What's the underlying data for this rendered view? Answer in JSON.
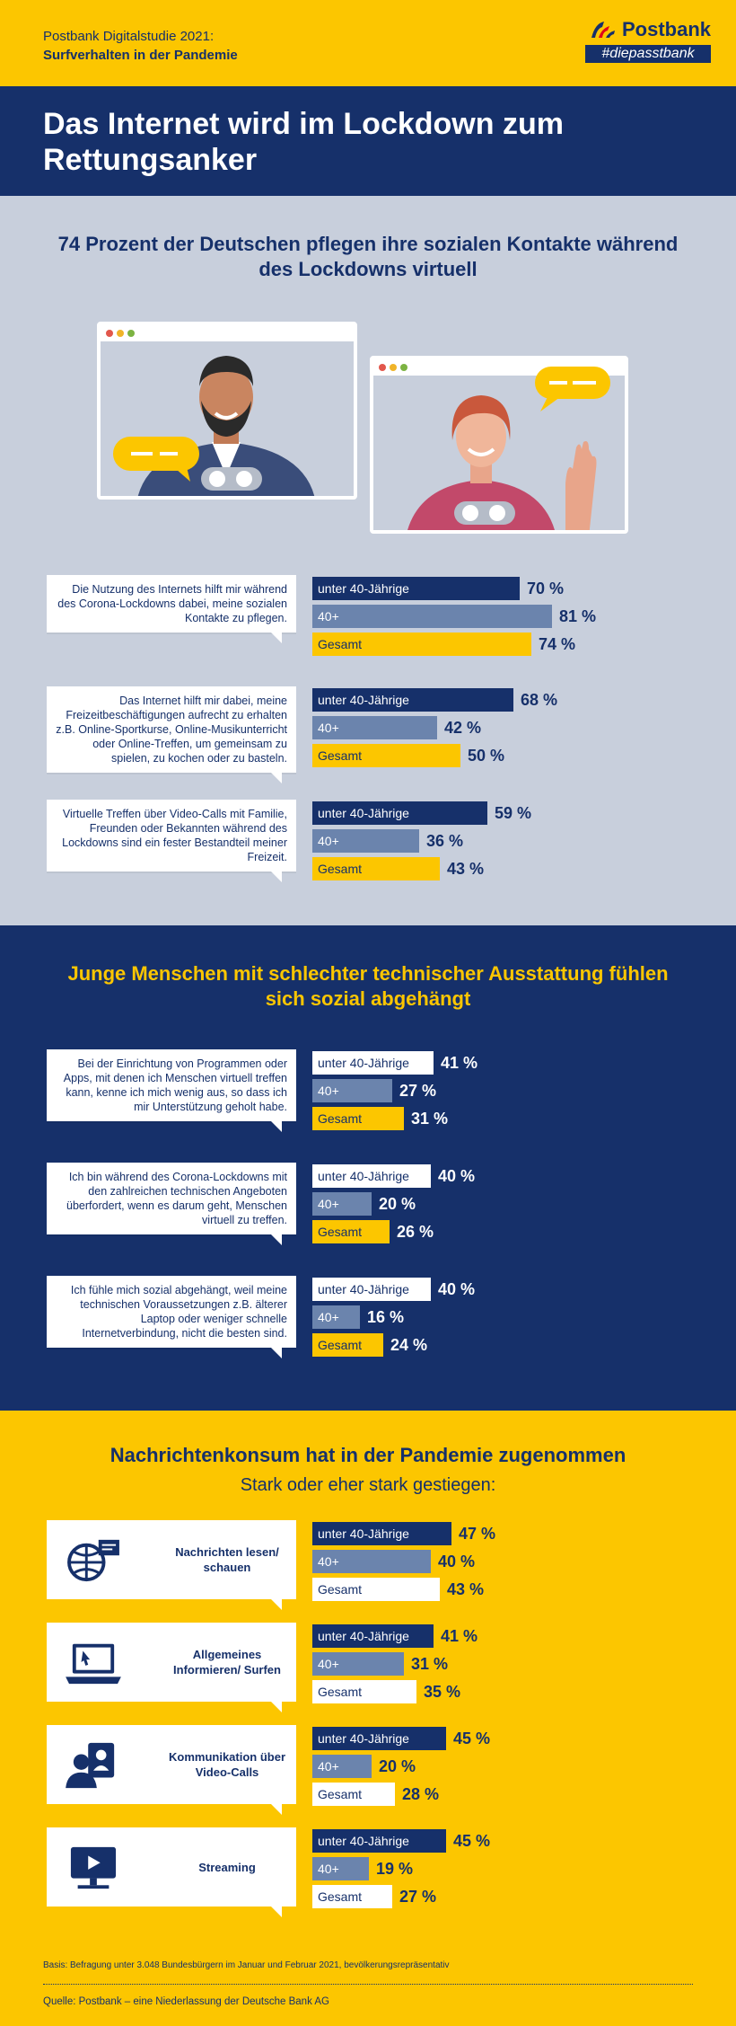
{
  "header": {
    "study": "Postbank Digitalstudie 2021:",
    "subtitle": "Surfverhalten in der Pandemie",
    "logo": "Postbank",
    "tagline": "#diepasstbank"
  },
  "hero": {
    "title": "Das Internet wird im Lockdown zum Rettungsanker"
  },
  "sections": [
    {
      "headline": "74 Prozent der Deutschen pflegen ihre sozialen Kontakte während des Lockdowns virtuell"
    },
    {
      "headline": "Junge Menschen mit schlechter technischer Ausstattung fühlen sich sozial abgehängt"
    },
    {
      "headline": "Nachrichtenkonsum hat in der Pandemie zugenommen",
      "subline": "Stark oder eher stark gestiegen:"
    }
  ],
  "colors": {
    "navy": "#16306a",
    "mid": "#6b84ad",
    "yellow": "#fcc600",
    "white": "#ffffff",
    "lightbg": "#c8cfdc"
  },
  "chart_data": {
    "type": "bar",
    "unit": "%",
    "series_names": [
      "unter 40-Jährige",
      "40+",
      "Gesamt"
    ],
    "groups": [
      {
        "section": 0,
        "statement": "Die Nutzung des Internets hilft mir während des Corona-Lockdowns dabei, meine sozialen Kontakte zu pflegen.",
        "values": [
          70,
          81,
          74
        ]
      },
      {
        "section": 0,
        "statement": "Das Internet hilft mir dabei, meine Freizeitbeschäftigungen aufrecht zu erhalten z.B. Online-Sportkurse, Online-Musikunterricht oder Online-Treffen, um gemeinsam zu spielen, zu kochen oder zu basteln.",
        "values": [
          68,
          42,
          50
        ]
      },
      {
        "section": 0,
        "statement": "Virtuelle Treffen über Video-Calls mit Familie, Freunden oder Bekannten während des Lockdowns sind ein fester Bestandteil meiner Freizeit.",
        "values": [
          59,
          36,
          43
        ]
      },
      {
        "section": 1,
        "statement": "Bei der Einrichtung von Programmen oder Apps, mit denen ich Menschen virtuell treffen kann, kenne ich mich wenig aus, so dass ich mir Unterstützung geholt habe.",
        "values": [
          41,
          27,
          31
        ]
      },
      {
        "section": 1,
        "statement": "Ich bin während des Corona-Lockdowns mit den zahlreichen technischen Angeboten überfordert, wenn es darum geht, Menschen virtuell zu treffen.",
        "values": [
          40,
          20,
          26
        ]
      },
      {
        "section": 1,
        "statement": "Ich fühle mich sozial abgehängt, weil meine technischen Voraussetzungen z.B. älterer Laptop oder weniger schnelle Internetverbindung, nicht die besten sind.",
        "values": [
          40,
          16,
          24
        ]
      },
      {
        "section": 2,
        "statement": "Nachrichten lesen/ schauen",
        "icon": "globe-news-icon",
        "values": [
          47,
          40,
          43
        ]
      },
      {
        "section": 2,
        "statement": "Allgemeines Informieren/ Surfen",
        "icon": "laptop-icon",
        "values": [
          41,
          31,
          35
        ]
      },
      {
        "section": 2,
        "statement": "Kommunikation über Video-Calls",
        "icon": "video-call-icon",
        "values": [
          45,
          20,
          28
        ]
      },
      {
        "section": 2,
        "statement": "Streaming",
        "icon": "tv-streaming-icon",
        "values": [
          45,
          19,
          27
        ]
      }
    ]
  },
  "footer": {
    "basis": "Basis: Befragung unter 3.048 Bundesbürgern im Januar und Februar 2021, bevölkerungsrepräsentativ",
    "source": "Quelle: Postbank – eine Niederlassung der Deutsche Bank AG"
  }
}
